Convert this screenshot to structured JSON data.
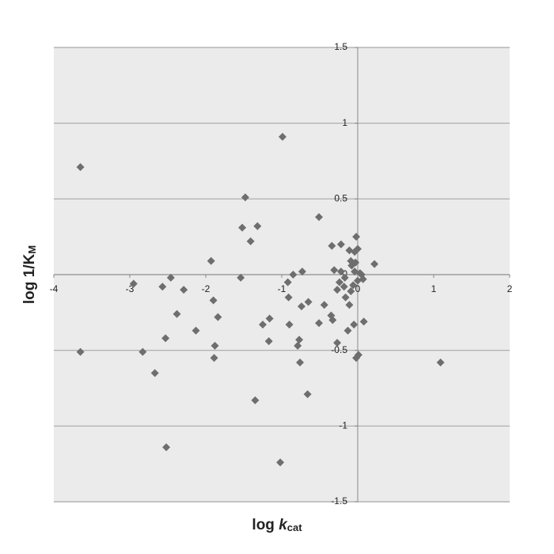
{
  "chart_data": {
    "type": "scatter",
    "x_label": [
      "log ",
      "k",
      "cat"
    ],
    "y_label": [
      "log 1/K",
      "M"
    ],
    "x": [
      -3.65,
      -3.65,
      -2.95,
      -2.83,
      -2.67,
      -2.57,
      -2.52,
      -2.53,
      -2.46,
      -2.38,
      -2.29,
      -2.13,
      -1.93,
      -1.9,
      -1.88,
      -1.89,
      -1.84,
      -1.54,
      -1.52,
      -1.48,
      -1.41,
      -1.32,
      -1.35,
      -1.25,
      -1.17,
      -1.16,
      -1.02,
      -0.99,
      -0.92,
      -0.91,
      -0.9,
      -0.85,
      -0.79,
      -0.77,
      -0.76,
      -0.73,
      -0.74,
      -0.65,
      -0.66,
      -0.51,
      -0.51,
      -0.44,
      -0.35,
      -0.34,
      -0.33,
      -0.31,
      -0.27,
      -0.27,
      -0.24,
      -0.22,
      -0.22,
      -0.18,
      -0.17,
      -0.16,
      -0.13,
      -0.11,
      -0.11,
      -0.09,
      -0.09,
      -0.08,
      -0.06,
      -0.05,
      -0.04,
      -0.03,
      -0.04,
      -0.02,
      -0.02,
      0.0,
      0.0,
      0.01,
      0.03,
      0.05,
      0.07,
      0.08,
      0.22,
      1.09
    ],
    "values": [
      0.71,
      -0.51,
      -0.06,
      -0.51,
      -0.65,
      -0.08,
      -1.14,
      -0.42,
      -0.02,
      -0.26,
      -0.1,
      -0.37,
      0.09,
      -0.17,
      -0.47,
      -0.55,
      -0.28,
      -0.02,
      0.31,
      0.51,
      0.22,
      0.32,
      -0.83,
      -0.33,
      -0.44,
      -0.29,
      -1.24,
      0.91,
      -0.05,
      -0.15,
      -0.33,
      0.0,
      -0.47,
      -0.43,
      -0.58,
      0.02,
      -0.21,
      -0.18,
      -0.79,
      0.38,
      -0.32,
      -0.2,
      -0.27,
      0.19,
      -0.3,
      0.03,
      -0.45,
      -0.1,
      -0.05,
      0.2,
      0.02,
      -0.08,
      -0.02,
      -0.15,
      -0.37,
      -0.2,
      0.16,
      0.09,
      -0.11,
      0.06,
      -0.07,
      -0.33,
      0.15,
      0.08,
      0.02,
      -0.55,
      0.25,
      0.17,
      -0.04,
      -0.53,
      0.01,
      0.0,
      -0.03,
      -0.31,
      0.07,
      -0.58
    ],
    "color": "#6e6e6e",
    "xlim": [
      -4,
      2
    ],
    "ylim": [
      -1.5,
      1.5
    ],
    "xticks": [
      -4,
      -3,
      -2,
      -1,
      0,
      1,
      2
    ],
    "yticks": [
      -1.5,
      -1,
      -0.5,
      0,
      0.5,
      1,
      1.5
    ],
    "grid": true
  }
}
